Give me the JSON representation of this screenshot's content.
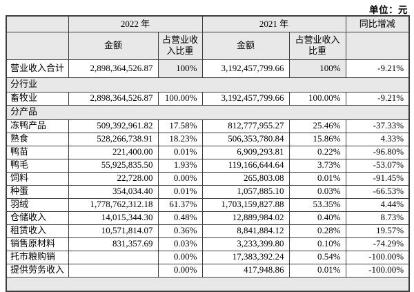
{
  "unit_label": "单位：元",
  "colors": {
    "header_gray": "#e8e8e8",
    "border": "#3d3d3d",
    "text": "#000000"
  },
  "table": {
    "header": {
      "year_2022": "2022 年",
      "year_2021": "2021 年",
      "yoy": "同比增减",
      "sub_amount_2022": "金额",
      "sub_ratio_2022": "占营业收入比重",
      "sub_amount_2021": "金额",
      "sub_ratio_2021": "占营业收入比重"
    },
    "rows": [
      {
        "type": "total",
        "label": "营业收入合计",
        "amount_2022": "2,898,364,526.87",
        "ratio_2022": "100%",
        "amount_2021": "3,192,457,799.66",
        "ratio_2021": "100%",
        "yoy": "-9.21%",
        "ratio_shaded": true
      },
      {
        "type": "section",
        "label": "分行业"
      },
      {
        "type": "data",
        "label": "畜牧业",
        "amount_2022": "2,898,364,526.87",
        "ratio_2022": "100.00%",
        "amount_2021": "3,192,457,799.66",
        "ratio_2021": "100.00%",
        "yoy": "-9.21%"
      },
      {
        "type": "section",
        "label": "分产品"
      },
      {
        "type": "data",
        "label": "冻鸭产品",
        "amount_2022": "509,392,961.82",
        "ratio_2022": "17.58%",
        "amount_2021": "812,777,955.27",
        "ratio_2021": "25.46%",
        "yoy": "-37.33%"
      },
      {
        "type": "data",
        "label": "熟食",
        "amount_2022": "528,266,738.91",
        "ratio_2022": "18.23%",
        "amount_2021": "506,353,780.84",
        "ratio_2021": "15.86%",
        "yoy": "4.33%"
      },
      {
        "type": "data",
        "label": "鸭苗",
        "amount_2022": "221,400.00",
        "ratio_2022": "0.01%",
        "amount_2021": "6,909,293.81",
        "ratio_2021": "0.22%",
        "yoy": "-96.80%"
      },
      {
        "type": "data",
        "label": "鸭毛",
        "amount_2022": "55,925,835.50",
        "ratio_2022": "1.93%",
        "amount_2021": "119,166,644.64",
        "ratio_2021": "3.73%",
        "yoy": "-53.07%"
      },
      {
        "type": "data",
        "label": "饲料",
        "amount_2022": "22,728.00",
        "ratio_2022": "0.00%",
        "amount_2021": "265,803.08",
        "ratio_2021": "0.01%",
        "yoy": "-91.45%"
      },
      {
        "type": "data",
        "label": "种蛋",
        "amount_2022": "354,034.40",
        "ratio_2022": "0.01%",
        "amount_2021": "1,057,885.10",
        "ratio_2021": "0.03%",
        "yoy": "-66.53%"
      },
      {
        "type": "data",
        "label": "羽绒",
        "amount_2022": "1,778,762,312.18",
        "ratio_2022": "61.37%",
        "amount_2021": "1,703,159,827.88",
        "ratio_2021": "53.35%",
        "yoy": "4.44%"
      },
      {
        "type": "data",
        "label": "仓储收入",
        "amount_2022": "14,015,344.30",
        "ratio_2022": "0.48%",
        "amount_2021": "12,889,984.02",
        "ratio_2021": "0.40%",
        "yoy": "8.73%"
      },
      {
        "type": "data",
        "label": "租赁收入",
        "amount_2022": "10,571,814.07",
        "ratio_2022": "0.36%",
        "amount_2021": "8,841,884.12",
        "ratio_2021": "0.28%",
        "yoy": "19.57%"
      },
      {
        "type": "data",
        "label": "销售原材料",
        "amount_2022": "831,357.69",
        "ratio_2022": "0.03%",
        "amount_2021": "3,233,399.80",
        "ratio_2021": "0.10%",
        "yoy": "-74.29%"
      },
      {
        "type": "data",
        "label": "托市粮购销",
        "amount_2022": "",
        "ratio_2022": "0.00%",
        "amount_2021": "17,383,392.24",
        "ratio_2021": "0.54%",
        "yoy": "-100.00%"
      },
      {
        "type": "data",
        "label": "提供劳务收入",
        "amount_2022": "",
        "ratio_2022": "0.00%",
        "amount_2021": "417,948.86",
        "ratio_2021": "0.01%",
        "yoy": "-100.00%"
      },
      {
        "type": "section",
        "label": ""
      }
    ]
  }
}
